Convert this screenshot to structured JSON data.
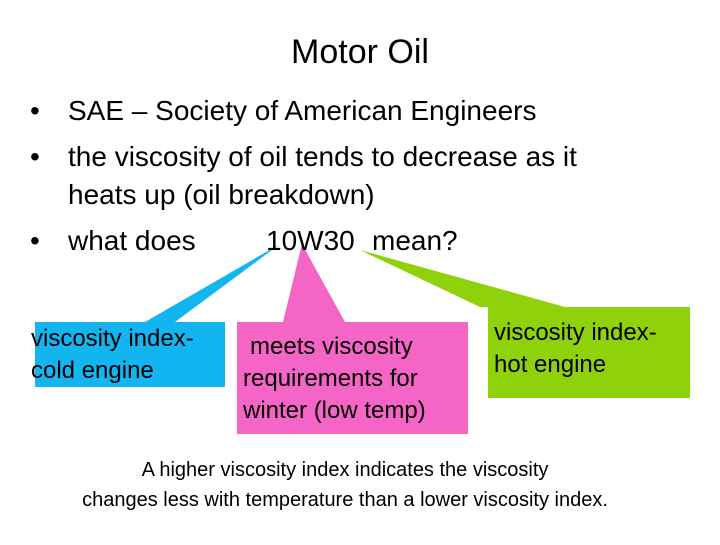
{
  "title": "Motor Oil",
  "bullets": [
    "SAE – Society of American Engineers",
    "the viscosity of oil tends to decrease as it",
    "heats up (oil breakdown)",
    "what does",
    "10W30",
    "mean?"
  ],
  "callouts": [
    {
      "lines": [
        "viscosity index-",
        "cold engine"
      ]
    },
    {
      "lines": [
        "meets viscosity",
        "requirements for",
        "winter (low temp)"
      ]
    },
    {
      "lines": [
        "viscosity index-",
        "hot engine"
      ]
    }
  ],
  "footer": [
    "A higher viscosity index indicates the viscosity",
    "changes less with temperature than a lower viscosity index."
  ]
}
